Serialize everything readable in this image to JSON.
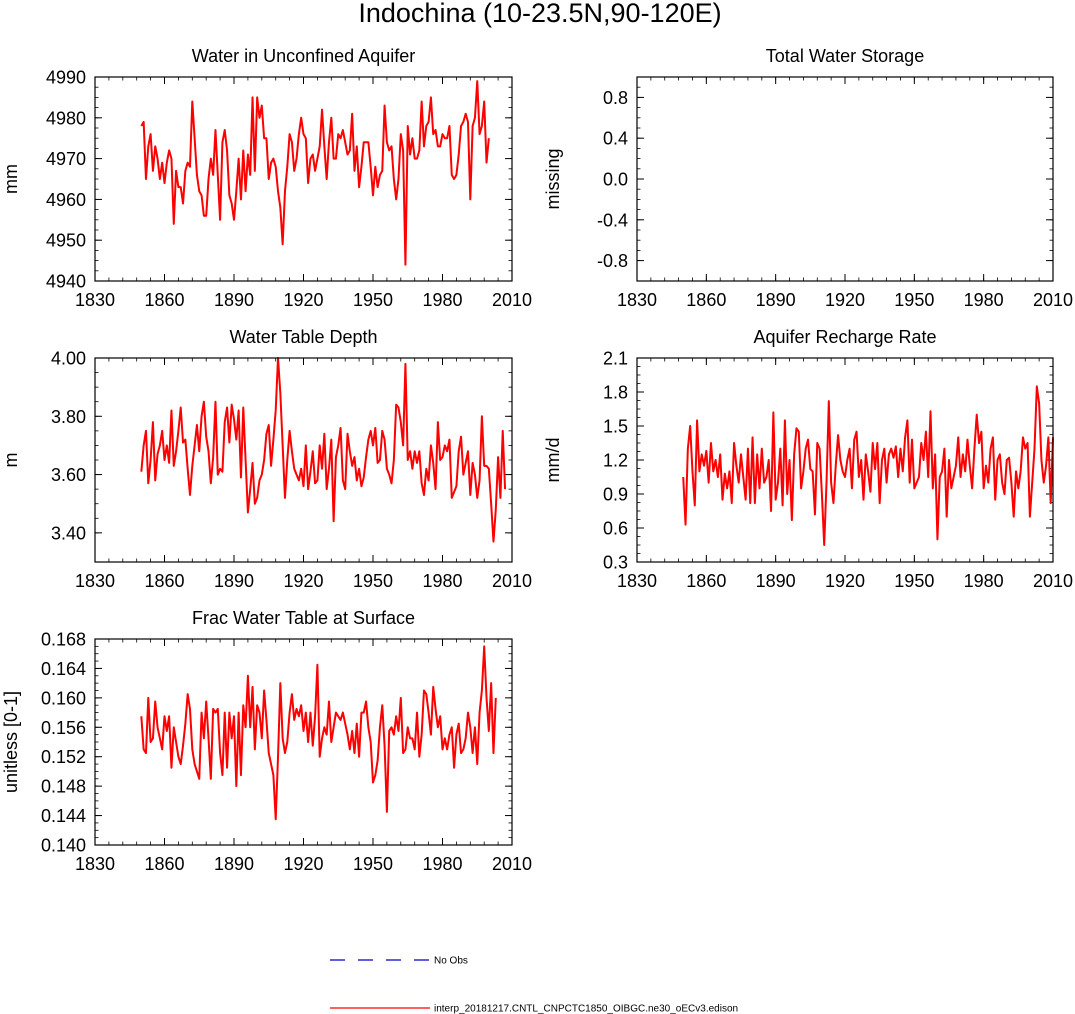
{
  "figure_title": "Indochina (10-23.5N,90-120E)",
  "legend": {
    "obs_label": "No Obs",
    "model_label": "interp_20181217.CNTL_CNPCTC1850_OIBGC.ne30_oECv3.edison",
    "obs_color": "#0000cc",
    "model_color": "#ff0000"
  },
  "chart_data": [
    {
      "type": "line",
      "title": "Water in Unconfined Aquifer",
      "ylabel": "mm",
      "xlim": [
        1830,
        2010
      ],
      "ylim": [
        4940,
        4990
      ],
      "xticks": [
        1830,
        1860,
        1890,
        1920,
        1950,
        1980,
        2010
      ],
      "yticks": [
        4940,
        4950,
        4960,
        4970,
        4980,
        4990
      ],
      "ytick_labels": [
        "4940",
        "4950",
        "4960",
        "4970",
        "4980",
        "4990"
      ],
      "series": [
        {
          "name": "model",
          "color": "#ff0000",
          "x_start": 1850,
          "values": [
            4978,
            4979,
            4965,
            4973,
            4976,
            4967,
            4973,
            4970,
            4965,
            4969,
            4964,
            4969,
            4972,
            4970,
            4954,
            4967,
            4963,
            4963,
            4959,
            4967,
            4969,
            4968,
            4984,
            4975,
            4966,
            4962,
            4961,
            4956,
            4956,
            4965,
            4970,
            4966,
            4977,
            4966,
            4955,
            4974,
            4977,
            4972,
            4961,
            4959,
            4955,
            4962,
            4970,
            4960,
            4972,
            4962,
            4971,
            4966,
            4985,
            4967,
            4985,
            4980,
            4983,
            4975,
            4975,
            4965,
            4969,
            4970,
            4968,
            4962,
            4958,
            4949,
            4962,
            4968,
            4976,
            4974,
            4967,
            4970,
            4976,
            4980,
            4976,
            4975,
            4964,
            4970,
            4971,
            4967,
            4970,
            4973,
            4982,
            4973,
            4965,
            4974,
            4980,
            4970,
            4970,
            4976,
            4975,
            4977,
            4974,
            4971,
            4972,
            4981,
            4967,
            4973,
            4963,
            4968,
            4974,
            4974,
            4974,
            4968,
            4961,
            4968,
            4963,
            4966,
            4967,
            4983,
            4974,
            4972,
            4973,
            4965,
            4960,
            4965,
            4976,
            4972,
            4944,
            4978,
            4971,
            4975,
            4970,
            4970,
            4972,
            4984,
            4973,
            4978,
            4979,
            4985,
            4976,
            4977,
            4973,
            4973,
            4976,
            4975,
            4975,
            4978,
            4966,
            4965,
            4966,
            4971,
            4978,
            4979,
            4981,
            4979,
            4960,
            4978,
            4980,
            4989,
            4976,
            4978,
            4984,
            4969,
            4975
          ]
        }
      ]
    },
    {
      "type": "line",
      "title": "Total Water Storage",
      "ylabel": "missing",
      "xlim": [
        1830,
        2010
      ],
      "ylim": [
        -1.0,
        1.0
      ],
      "xticks": [
        1830,
        1860,
        1890,
        1920,
        1950,
        1980,
        2010
      ],
      "yticks": [
        -0.8,
        -0.4,
        0.0,
        0.4,
        0.8
      ],
      "ytick_labels": [
        "-0.8",
        "-0.4",
        "0.0",
        "0.4",
        "0.8"
      ],
      "series": []
    },
    {
      "type": "line",
      "title": "Water Table Depth",
      "ylabel": "m",
      "xlim": [
        1830,
        2010
      ],
      "ylim": [
        3.3,
        4.0
      ],
      "xticks": [
        1830,
        1860,
        1890,
        1920,
        1950,
        1980,
        2010
      ],
      "yticks": [
        3.4,
        3.6,
        3.8,
        4.0
      ],
      "ytick_labels": [
        "3.40",
        "3.60",
        "3.80",
        "4.00"
      ],
      "series": [
        {
          "name": "model",
          "color": "#ff0000",
          "x_start": 1850,
          "values": [
            3.61,
            3.7,
            3.75,
            3.57,
            3.65,
            3.78,
            3.58,
            3.67,
            3.7,
            3.75,
            3.65,
            3.7,
            3.64,
            3.82,
            3.63,
            3.68,
            3.75,
            3.83,
            3.71,
            3.72,
            3.62,
            3.53,
            3.63,
            3.7,
            3.77,
            3.68,
            3.8,
            3.85,
            3.73,
            3.68,
            3.57,
            3.66,
            3.85,
            3.6,
            3.62,
            3.61,
            3.78,
            3.83,
            3.71,
            3.84,
            3.79,
            3.72,
            3.82,
            3.59,
            3.83,
            3.65,
            3.47,
            3.55,
            3.64,
            3.5,
            3.52,
            3.58,
            3.6,
            3.65,
            3.74,
            3.77,
            3.63,
            3.72,
            3.82,
            4.0,
            3.88,
            3.7,
            3.52,
            3.65,
            3.75,
            3.68,
            3.62,
            3.6,
            3.58,
            3.62,
            3.56,
            3.7,
            3.55,
            3.61,
            3.68,
            3.57,
            3.58,
            3.7,
            3.62,
            3.74,
            3.55,
            3.62,
            3.72,
            3.44,
            3.66,
            3.7,
            3.76,
            3.58,
            3.55,
            3.74,
            3.68,
            3.63,
            3.66,
            3.58,
            3.62,
            3.56,
            3.59,
            3.66,
            3.72,
            3.75,
            3.7,
            3.76,
            3.64,
            3.65,
            3.75,
            3.72,
            3.62,
            3.6,
            3.57,
            3.65,
            3.84,
            3.83,
            3.78,
            3.7,
            3.98,
            3.65,
            3.68,
            3.62,
            3.68,
            3.64,
            3.68,
            3.57,
            3.53,
            3.62,
            3.58,
            3.7,
            3.64,
            3.55,
            3.78,
            3.65,
            3.66,
            3.7,
            3.68,
            3.72,
            3.52,
            3.54,
            3.56,
            3.68,
            3.73,
            3.6,
            3.64,
            3.68,
            3.53,
            3.64,
            3.6,
            3.52,
            3.58,
            3.8,
            3.63,
            3.63,
            3.62,
            3.5,
            3.37,
            3.48,
            3.66,
            3.52,
            3.75,
            3.55
          ]
        }
      ]
    },
    {
      "type": "line",
      "title": "Aquifer Recharge Rate",
      "ylabel": "mm/d",
      "xlim": [
        1830,
        2010
      ],
      "ylim": [
        0.3,
        2.1
      ],
      "xticks": [
        1830,
        1860,
        1890,
        1920,
        1950,
        1980,
        2010
      ],
      "yticks": [
        0.3,
        0.6,
        0.9,
        1.2,
        1.5,
        1.8,
        2.1
      ],
      "ytick_labels": [
        "0.3",
        "0.6",
        "0.9",
        "1.2",
        "1.5",
        "1.8",
        "2.1"
      ],
      "series": [
        {
          "name": "model",
          "color": "#ff0000",
          "x_start": 1850,
          "values": [
            1.05,
            0.63,
            1.3,
            1.5,
            1.1,
            0.8,
            1.55,
            1.1,
            1.25,
            1.15,
            1.28,
            1.0,
            1.35,
            1.1,
            1.2,
            1.05,
            1.25,
            0.85,
            1.08,
            0.95,
            1.1,
            0.82,
            1.35,
            1.15,
            1.0,
            1.25,
            1.05,
            0.85,
            1.3,
            0.82,
            1.4,
            0.82,
            1.25,
            0.95,
            1.3,
            1.0,
            1.05,
            1.2,
            0.75,
            1.62,
            0.85,
            1.0,
            1.3,
            0.8,
            1.55,
            0.9,
            1.2,
            0.67,
            1.25,
            1.48,
            1.45,
            0.95,
            1.1,
            1.3,
            1.38,
            1.12,
            1.1,
            0.72,
            1.35,
            1.3,
            0.9,
            0.45,
            1.0,
            1.72,
            1.0,
            0.82,
            1.15,
            1.42,
            1.2,
            1.1,
            1.05,
            1.2,
            1.3,
            0.95,
            1.38,
            1.45,
            1.05,
            1.2,
            0.85,
            1.25,
            1.1,
            0.92,
            1.35,
            1.12,
            1.35,
            0.82,
            1.2,
            1.3,
            1.0,
            1.25,
            1.3,
            1.22,
            1.32,
            1.05,
            1.3,
            1.1,
            1.4,
            1.55,
            1.0,
            1.38,
            0.95,
            1.0,
            1.05,
            1.35,
            1.2,
            1.45,
            1.05,
            1.63,
            0.95,
            1.25,
            0.5,
            1.05,
            1.1,
            1.3,
            0.7,
            1.2,
            0.95,
            1.05,
            1.15,
            1.4,
            1.05,
            1.25,
            1.1,
            1.38,
            1.15,
            0.95,
            1.3,
            1.6,
            1.35,
            1.45,
            0.95,
            1.15,
            1.0,
            1.3,
            1.4,
            0.85,
            1.2,
            1.25,
            1.0,
            0.9,
            1.2,
            1.22,
            1.0,
            0.7,
            1.1,
            0.95,
            1.1,
            1.4,
            1.3,
            1.35,
            0.7,
            1.0,
            1.3,
            1.85,
            1.7,
            1.2,
            1.0,
            1.15,
            1.4,
            0.82,
            1.4
          ]
        }
      ]
    },
    {
      "type": "line",
      "title": "Frac Water Table at Surface",
      "ylabel": "unitless [0-1]",
      "xlim": [
        1830,
        2010
      ],
      "ylim": [
        0.14,
        0.168
      ],
      "xticks": [
        1830,
        1860,
        1890,
        1920,
        1950,
        1980,
        2010
      ],
      "yticks": [
        0.14,
        0.144,
        0.148,
        0.152,
        0.156,
        0.16,
        0.164,
        0.168
      ],
      "ytick_labels": [
        "0.140",
        "0.144",
        "0.148",
        "0.152",
        "0.156",
        "0.160",
        "0.164",
        "0.168"
      ],
      "series": [
        {
          "name": "model",
          "color": "#ff0000",
          "x_start": 1850,
          "values": [
            0.1575,
            0.153,
            0.1525,
            0.16,
            0.154,
            0.1545,
            0.1595,
            0.156,
            0.1545,
            0.153,
            0.1575,
            0.1555,
            0.1575,
            0.1505,
            0.156,
            0.154,
            0.152,
            0.151,
            0.1535,
            0.1565,
            0.1605,
            0.1585,
            0.153,
            0.151,
            0.15,
            0.149,
            0.158,
            0.1545,
            0.1595,
            0.1545,
            0.149,
            0.1585,
            0.158,
            0.1585,
            0.1525,
            0.1495,
            0.158,
            0.1505,
            0.158,
            0.1545,
            0.1575,
            0.148,
            0.158,
            0.1495,
            0.159,
            0.156,
            0.163,
            0.156,
            0.1615,
            0.153,
            0.159,
            0.158,
            0.1545,
            0.161,
            0.157,
            0.1525,
            0.151,
            0.1495,
            0.1435,
            0.152,
            0.162,
            0.1545,
            0.1525,
            0.154,
            0.158,
            0.1605,
            0.157,
            0.1585,
            0.1575,
            0.159,
            0.1555,
            0.158,
            0.154,
            0.158,
            0.1535,
            0.1575,
            0.1645,
            0.152,
            0.1545,
            0.156,
            0.155,
            0.1595,
            0.154,
            0.156,
            0.158,
            0.1575,
            0.157,
            0.158,
            0.1565,
            0.155,
            0.153,
            0.1555,
            0.1525,
            0.1565,
            0.152,
            0.158,
            0.158,
            0.1595,
            0.156,
            0.154,
            0.1485,
            0.1495,
            0.1515,
            0.156,
            0.159,
            0.1535,
            0.1445,
            0.1555,
            0.156,
            0.155,
            0.1575,
            0.1555,
            0.16,
            0.1525,
            0.153,
            0.156,
            0.1545,
            0.1545,
            0.153,
            0.158,
            0.152,
            0.155,
            0.161,
            0.1605,
            0.158,
            0.155,
            0.1615,
            0.1585,
            0.156,
            0.1575,
            0.153,
            0.1545,
            0.153,
            0.155,
            0.156,
            0.1505,
            0.155,
            0.1565,
            0.1525,
            0.153,
            0.1545,
            0.158,
            0.156,
            0.1525,
            0.156,
            0.151,
            0.158,
            0.161,
            0.167,
            0.16,
            0.1555,
            0.162,
            0.1525,
            0.16
          ]
        }
      ]
    }
  ]
}
